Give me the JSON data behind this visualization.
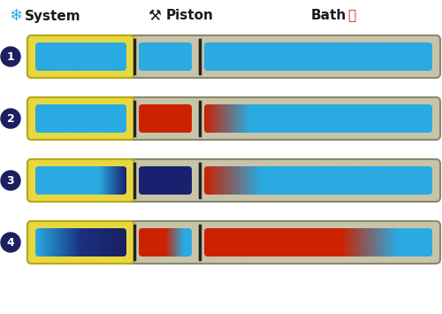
{
  "background_color": "#ffffff",
  "circle_color": "#1a2060",
  "container_color": "#c8c4a8",
  "container_edge": "#888870",
  "system_frame_color": "#e8d840",
  "system_frame_edge": "#b8a818",
  "cyan_color": "#29ABE2",
  "dark_blue_color": "#1a2070",
  "red_color": "#cc2200",
  "circle_labels": [
    "1",
    "2",
    "3",
    "4"
  ],
  "rows": [
    {
      "system_fill": [
        [
          0,
          "#29ABE2"
        ],
        [
          1,
          "#29ABE2"
        ]
      ],
      "piston_fill": [
        [
          0,
          "#29ABE2"
        ],
        [
          1,
          "#29ABE2"
        ]
      ],
      "bath_fill": [
        [
          0,
          "#29ABE2"
        ],
        [
          1,
          "#29ABE2"
        ]
      ]
    },
    {
      "system_fill": [
        [
          0,
          "#29ABE2"
        ],
        [
          1,
          "#29ABE2"
        ]
      ],
      "piston_fill": [
        [
          0,
          "#cc2200"
        ],
        [
          1,
          "#cc2200"
        ]
      ],
      "bath_fill": [
        [
          0,
          "#cc2200"
        ],
        [
          0.2,
          "#29ABE2"
        ],
        [
          1,
          "#29ABE2"
        ]
      ]
    },
    {
      "system_fill": [
        [
          0,
          "#29ABE2"
        ],
        [
          0.7,
          "#29ABE2"
        ],
        [
          1,
          "#1a2070"
        ]
      ],
      "piston_fill": [
        [
          0,
          "#1a2070"
        ],
        [
          1,
          "#1a2070"
        ]
      ],
      "bath_fill": [
        [
          0,
          "#cc2200"
        ],
        [
          0.25,
          "#29ABE2"
        ],
        [
          1,
          "#29ABE2"
        ]
      ]
    },
    {
      "system_fill": [
        [
          0,
          "#29ABE2"
        ],
        [
          0.5,
          "#1a3080"
        ],
        [
          1,
          "#1a2060"
        ]
      ],
      "piston_fill": [
        [
          0,
          "#cc2200"
        ],
        [
          0.5,
          "#cc2200"
        ],
        [
          0.85,
          "#29ABE2"
        ],
        [
          1,
          "#29ABE2"
        ]
      ],
      "bath_fill": [
        [
          0,
          "#cc2200"
        ],
        [
          0.6,
          "#cc2200"
        ],
        [
          0.85,
          "#29ABE2"
        ],
        [
          1,
          "#29ABE2"
        ]
      ]
    }
  ]
}
